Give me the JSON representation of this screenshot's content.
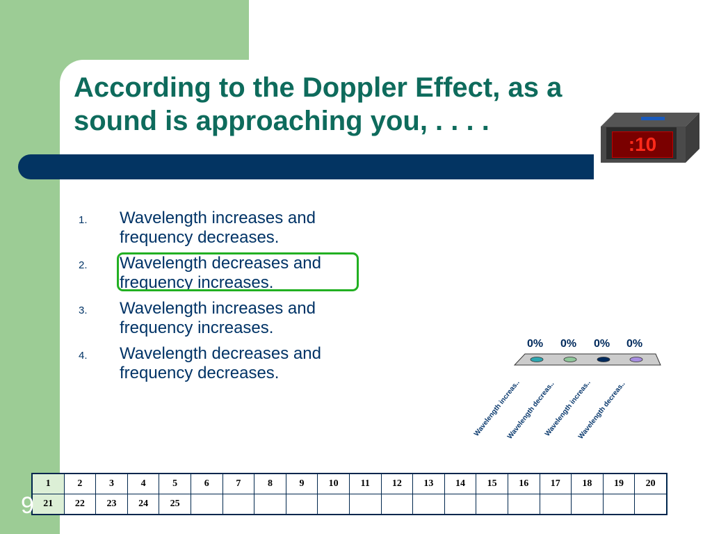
{
  "slide": {
    "title": "According to the Doppler Effect, as a sound is approaching you, . . . .",
    "number": "9"
  },
  "timer": {
    "display": ":10"
  },
  "answers": [
    {
      "num": "1.",
      "text": "Wavelength increases and frequency decreases."
    },
    {
      "num": "2.",
      "text": "Wavelength decreases and frequency increases."
    },
    {
      "num": "3.",
      "text": "Wavelength increases and frequency increases."
    },
    {
      "num": "4.",
      "text": "Wavelength decreases and frequency decreases."
    }
  ],
  "chart_data": {
    "type": "bar",
    "categories": [
      "Wavelength increas..",
      "Wavelength decreas..",
      "Wavelength increas..",
      "Wavelength decreas.."
    ],
    "values": [
      0,
      0,
      0,
      0
    ],
    "value_labels": [
      "0%",
      "0%",
      "0%",
      "0%"
    ],
    "colors": [
      "#2ea6b0",
      "#8fc79a",
      "#002a5c",
      "#a78ee0"
    ],
    "ylim": [
      0,
      100
    ]
  },
  "grid": {
    "row1": [
      "1",
      "2",
      "3",
      "4",
      "5",
      "6",
      "7",
      "8",
      "9",
      "10",
      "11",
      "12",
      "13",
      "14",
      "15",
      "16",
      "17",
      "18",
      "19",
      "20"
    ],
    "row2": [
      "21",
      "22",
      "23",
      "24",
      "25",
      "",
      "",
      "",
      "",
      "",
      "",
      "",
      "",
      "",
      "",
      "",
      "",
      "",
      "",
      ""
    ]
  },
  "colors": {
    "title": "#0e6b5c",
    "accent_bar": "#033462",
    "band": "#9ccc95",
    "correct_highlight": "#22b022",
    "timer_digits": "#ff2a1a"
  }
}
